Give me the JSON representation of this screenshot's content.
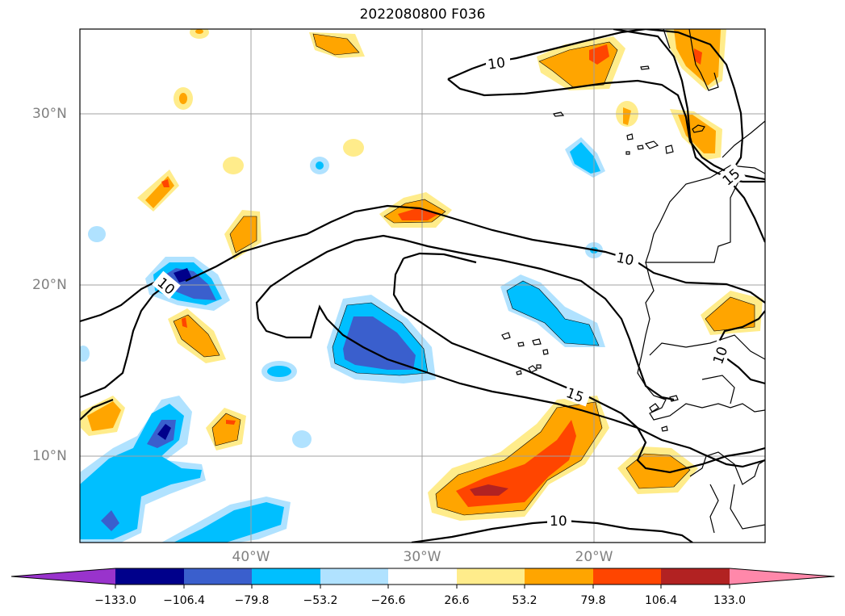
{
  "title": "2022080800 F036",
  "lat_labels": [
    "30°N",
    "20°N",
    "10°N"
  ],
  "lon_labels": [
    "40°W",
    "30°W",
    "20°W"
  ],
  "contour_labels": [
    "10",
    "10",
    "10",
    "10",
    "10",
    "15",
    "15"
  ],
  "colorbar": {
    "ticks": [
      "−133.0",
      "−106.4",
      "−79.8",
      "−53.2",
      "−26.6",
      "26.6",
      "53.2",
      "79.8",
      "106.4",
      "133.0"
    ],
    "colors": [
      "#9933cc",
      "#00008b",
      "#3a5fcd",
      "#00bfff",
      "#b0e2ff",
      "#ffffff",
      "#ffec8b",
      "#ffa500",
      "#ff4500",
      "#b22222",
      "#ff88aa"
    ]
  },
  "colors": {
    "contour": "#000000",
    "grid": "#a0a0a0",
    "coast": "#000000"
  }
}
